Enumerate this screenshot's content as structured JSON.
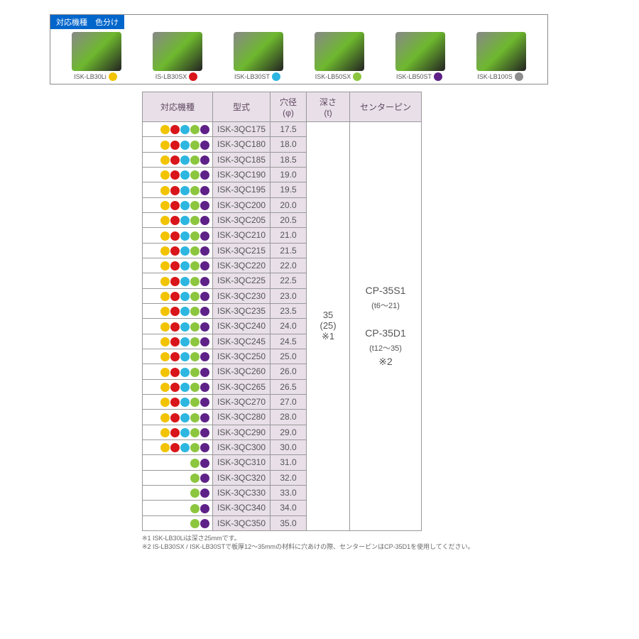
{
  "colors": {
    "yellow": "#f2c300",
    "red": "#d8151a",
    "cyan": "#2db6e0",
    "green": "#8cc63f",
    "purple": "#5e2187",
    "gray": "#8d8d8d"
  },
  "legend": {
    "header": "対応機種　色分け",
    "items": [
      {
        "label": "ISK-LB30Li",
        "color": "yellow"
      },
      {
        "label": "IS-LB30SX",
        "color": "red"
      },
      {
        "label": "ISK-LB30ST",
        "color": "cyan"
      },
      {
        "label": "ISK-LB50SX",
        "color": "green"
      },
      {
        "label": "ISK-LB50ST",
        "color": "purple"
      },
      {
        "label": "ISK-LB100S",
        "color": "gray"
      }
    ]
  },
  "table": {
    "headers": {
      "machines": "対応機種",
      "model": "型式",
      "dia": "穴径\n(φ)",
      "depth": "深さ\n(t)",
      "pin": "センターピン"
    },
    "depth_cell": "35\n(25)\n※1",
    "pin_cell": {
      "line1": "CP-35S1",
      "line1sub": "(t6～21)",
      "line2": "CP-35D1",
      "line2sub": "(t12～35)",
      "line3": "※2"
    },
    "rows": [
      {
        "dots": [
          "yellow",
          "red",
          "cyan",
          "green",
          "purple"
        ],
        "model": "ISK-3QC175",
        "dia": "17.5"
      },
      {
        "dots": [
          "yellow",
          "red",
          "cyan",
          "green",
          "purple"
        ],
        "model": "ISK-3QC180",
        "dia": "18.0"
      },
      {
        "dots": [
          "yellow",
          "red",
          "cyan",
          "green",
          "purple"
        ],
        "model": "ISK-3QC185",
        "dia": "18.5"
      },
      {
        "dots": [
          "yellow",
          "red",
          "cyan",
          "green",
          "purple"
        ],
        "model": "ISK-3QC190",
        "dia": "19.0"
      },
      {
        "dots": [
          "yellow",
          "red",
          "cyan",
          "green",
          "purple"
        ],
        "model": "ISK-3QC195",
        "dia": "19.5"
      },
      {
        "dots": [
          "yellow",
          "red",
          "cyan",
          "green",
          "purple"
        ],
        "model": "ISK-3QC200",
        "dia": "20.0"
      },
      {
        "dots": [
          "yellow",
          "red",
          "cyan",
          "green",
          "purple"
        ],
        "model": "ISK-3QC205",
        "dia": "20.5"
      },
      {
        "dots": [
          "yellow",
          "red",
          "cyan",
          "green",
          "purple"
        ],
        "model": "ISK-3QC210",
        "dia": "21.0"
      },
      {
        "dots": [
          "yellow",
          "red",
          "cyan",
          "green",
          "purple"
        ],
        "model": "ISK-3QC215",
        "dia": "21.5"
      },
      {
        "dots": [
          "yellow",
          "red",
          "cyan",
          "green",
          "purple"
        ],
        "model": "ISK-3QC220",
        "dia": "22.0"
      },
      {
        "dots": [
          "yellow",
          "red",
          "cyan",
          "green",
          "purple"
        ],
        "model": "ISK-3QC225",
        "dia": "22.5"
      },
      {
        "dots": [
          "yellow",
          "red",
          "cyan",
          "green",
          "purple"
        ],
        "model": "ISK-3QC230",
        "dia": "23.0"
      },
      {
        "dots": [
          "yellow",
          "red",
          "cyan",
          "green",
          "purple"
        ],
        "model": "ISK-3QC235",
        "dia": "23.5"
      },
      {
        "dots": [
          "yellow",
          "red",
          "cyan",
          "green",
          "purple"
        ],
        "model": "ISK-3QC240",
        "dia": "24.0"
      },
      {
        "dots": [
          "yellow",
          "red",
          "cyan",
          "green",
          "purple"
        ],
        "model": "ISK-3QC245",
        "dia": "24.5"
      },
      {
        "dots": [
          "yellow",
          "red",
          "cyan",
          "green",
          "purple"
        ],
        "model": "ISK-3QC250",
        "dia": "25.0"
      },
      {
        "dots": [
          "yellow",
          "red",
          "cyan",
          "green",
          "purple"
        ],
        "model": "ISK-3QC260",
        "dia": "26.0"
      },
      {
        "dots": [
          "yellow",
          "red",
          "cyan",
          "green",
          "purple"
        ],
        "model": "ISK-3QC265",
        "dia": "26.5"
      },
      {
        "dots": [
          "yellow",
          "red",
          "cyan",
          "green",
          "purple"
        ],
        "model": "ISK-3QC270",
        "dia": "27.0"
      },
      {
        "dots": [
          "yellow",
          "red",
          "cyan",
          "green",
          "purple"
        ],
        "model": "ISK-3QC280",
        "dia": "28.0"
      },
      {
        "dots": [
          "yellow",
          "red",
          "cyan",
          "green",
          "purple"
        ],
        "model": "ISK-3QC290",
        "dia": "29.0"
      },
      {
        "dots": [
          "yellow",
          "red",
          "cyan",
          "green",
          "purple"
        ],
        "model": "ISK-3QC300",
        "dia": "30.0"
      },
      {
        "dots": [
          "green",
          "purple"
        ],
        "model": "ISK-3QC310",
        "dia": "31.0"
      },
      {
        "dots": [
          "green",
          "purple"
        ],
        "model": "ISK-3QC320",
        "dia": "32.0"
      },
      {
        "dots": [
          "green",
          "purple"
        ],
        "model": "ISK-3QC330",
        "dia": "33.0"
      },
      {
        "dots": [
          "green",
          "purple"
        ],
        "model": "ISK-3QC340",
        "dia": "34.0"
      },
      {
        "dots": [
          "green",
          "purple"
        ],
        "model": "ISK-3QC350",
        "dia": "35.0"
      }
    ],
    "footnotes": [
      "※1 ISK-LB30Liは深さ25mmです。",
      "※2 IS-LB30SX / ISK-LB30STで板厚12～35mmの材料に穴あけの際、センターピンはCP-35D1を使用してください。"
    ]
  }
}
